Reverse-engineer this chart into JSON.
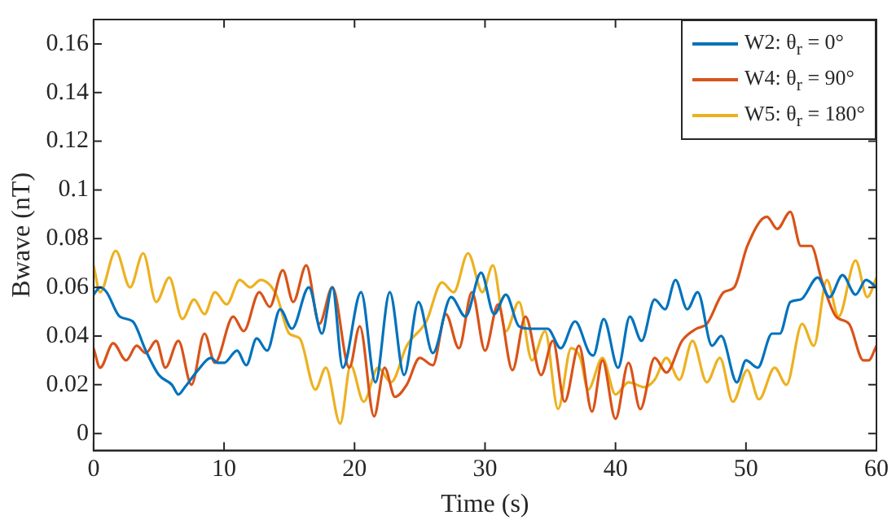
{
  "chart_data": {
    "type": "line",
    "xlabel": "Time (s)",
    "ylabel": "Bwave (nT)",
    "xlim": [
      0,
      60
    ],
    "xticks": [
      0,
      10,
      20,
      30,
      40,
      50,
      60
    ],
    "ylim": [
      -0.007,
      0.17
    ],
    "yticks": [
      0,
      0.02,
      0.04,
      0.06,
      0.08,
      0.1,
      0.12,
      0.14,
      0.16
    ],
    "grid": false,
    "legend": "top right",
    "marker": "none",
    "line_style": "solid",
    "series": [
      {
        "name": "W2: θ$_{r}$ = 0°",
        "color": "#0072bd",
        "x": [
          0,
          0.5,
          1,
          2,
          3,
          4,
          5,
          6,
          6.5,
          7,
          8,
          9,
          9.5,
          10,
          11,
          11.7,
          12.5,
          13.3,
          14.3,
          15.2,
          16.5,
          17.5,
          18.3,
          19.1,
          20.5,
          21.6,
          22.7,
          23.8,
          24.9,
          26,
          27.4,
          28.5,
          29.7,
          30.7,
          31.6,
          32.6,
          33.5,
          34.8,
          35.8,
          36.9,
          38,
          38.3,
          39.1,
          40.2,
          41.1,
          42,
          43,
          43.8,
          44.6,
          45.5,
          46.3,
          47.4,
          48.1,
          49.3,
          50,
          50.9,
          52,
          52.6,
          53.4,
          54.2,
          55.5,
          56.4,
          57.4,
          58.4,
          59.2,
          60
        ],
        "values": [
          0.057,
          0.06,
          0.058,
          0.048,
          0.046,
          0.034,
          0.024,
          0.02,
          0.016,
          0.019,
          0.026,
          0.031,
          0.029,
          0.029,
          0.034,
          0.028,
          0.039,
          0.034,
          0.051,
          0.043,
          0.06,
          0.041,
          0.06,
          0.027,
          0.058,
          0.021,
          0.058,
          0.024,
          0.054,
          0.033,
          0.056,
          0.048,
          0.066,
          0.049,
          0.057,
          0.044,
          0.043,
          0.043,
          0.035,
          0.046,
          0.033,
          0.032,
          0.047,
          0.027,
          0.048,
          0.038,
          0.055,
          0.051,
          0.063,
          0.051,
          0.058,
          0.036,
          0.04,
          0.021,
          0.03,
          0.027,
          0.041,
          0.041,
          0.054,
          0.055,
          0.064,
          0.056,
          0.065,
          0.057,
          0.063,
          0.06
        ]
      },
      {
        "name": "W4: θ$_{r}$ = 90°",
        "color": "#d95319",
        "x": [
          0,
          0.5,
          1.5,
          2.5,
          3.3,
          4,
          4.8,
          5.5,
          6.5,
          7.5,
          8.5,
          9.3,
          10.7,
          11.5,
          12.7,
          13.5,
          14.5,
          15.3,
          16.3,
          17.3,
          18.3,
          19.6,
          20.4,
          21.5,
          22.3,
          23.1,
          24,
          25,
          26,
          27,
          28,
          29,
          30,
          31,
          32.1,
          33.1,
          34.3,
          35.2,
          36.1,
          37.2,
          38.2,
          39,
          40,
          41,
          41.9,
          43,
          43.9,
          45.1,
          46.2,
          47,
          48.3,
          49.1,
          50.1,
          51.6,
          52.4,
          53.4,
          54.2,
          55,
          55.8,
          56.9,
          57.9,
          59,
          59.4,
          60
        ],
        "values": [
          0.035,
          0.027,
          0.037,
          0.03,
          0.036,
          0.033,
          0.038,
          0.027,
          0.038,
          0.02,
          0.041,
          0.029,
          0.048,
          0.042,
          0.058,
          0.052,
          0.067,
          0.054,
          0.069,
          0.045,
          0.06,
          0.027,
          0.044,
          0.007,
          0.027,
          0.015,
          0.02,
          0.031,
          0.028,
          0.049,
          0.035,
          0.058,
          0.034,
          0.053,
          0.026,
          0.048,
          0.024,
          0.038,
          0.013,
          0.036,
          0.009,
          0.03,
          0.006,
          0.029,
          0.01,
          0.031,
          0.025,
          0.038,
          0.043,
          0.045,
          0.058,
          0.06,
          0.077,
          0.089,
          0.084,
          0.091,
          0.077,
          0.077,
          0.063,
          0.048,
          0.045,
          0.03,
          0.03,
          0.036
        ]
      },
      {
        "name": "W5: θ$_{r}$ = 180°",
        "color": "#edb120",
        "x": [
          0,
          0.5,
          1.7,
          2.8,
          3.8,
          4.8,
          5.8,
          6.8,
          7.7,
          8.5,
          9.3,
          10.2,
          11.2,
          12,
          12.8,
          14,
          15,
          15.8,
          17,
          17.8,
          18.9,
          19.7,
          20.7,
          21.8,
          22.8,
          24,
          25.5,
          26.7,
          27.6,
          28.7,
          29.8,
          30.6,
          31.6,
          32.6,
          33.6,
          34.6,
          35.6,
          36.6,
          37.3,
          37.9,
          39,
          40,
          41,
          42.2,
          43,
          43.9,
          44.9,
          45.9,
          47,
          48,
          49,
          50.1,
          51,
          52.2,
          53.1,
          54.3,
          55.2,
          56.2,
          57.1,
          58.4,
          59.3,
          60
        ],
        "values": [
          0.069,
          0.058,
          0.075,
          0.06,
          0.074,
          0.054,
          0.064,
          0.047,
          0.055,
          0.049,
          0.058,
          0.053,
          0.063,
          0.06,
          0.063,
          0.057,
          0.041,
          0.039,
          0.018,
          0.027,
          0.004,
          0.028,
          0.013,
          0.027,
          0.021,
          0.036,
          0.046,
          0.062,
          0.058,
          0.074,
          0.058,
          0.069,
          0.042,
          0.054,
          0.03,
          0.042,
          0.01,
          0.035,
          0.031,
          0.018,
          0.031,
          0.016,
          0.021,
          0.019,
          0.022,
          0.031,
          0.022,
          0.038,
          0.021,
          0.031,
          0.013,
          0.026,
          0.014,
          0.027,
          0.02,
          0.045,
          0.036,
          0.063,
          0.048,
          0.071,
          0.056,
          0.064
        ]
      }
    ]
  }
}
